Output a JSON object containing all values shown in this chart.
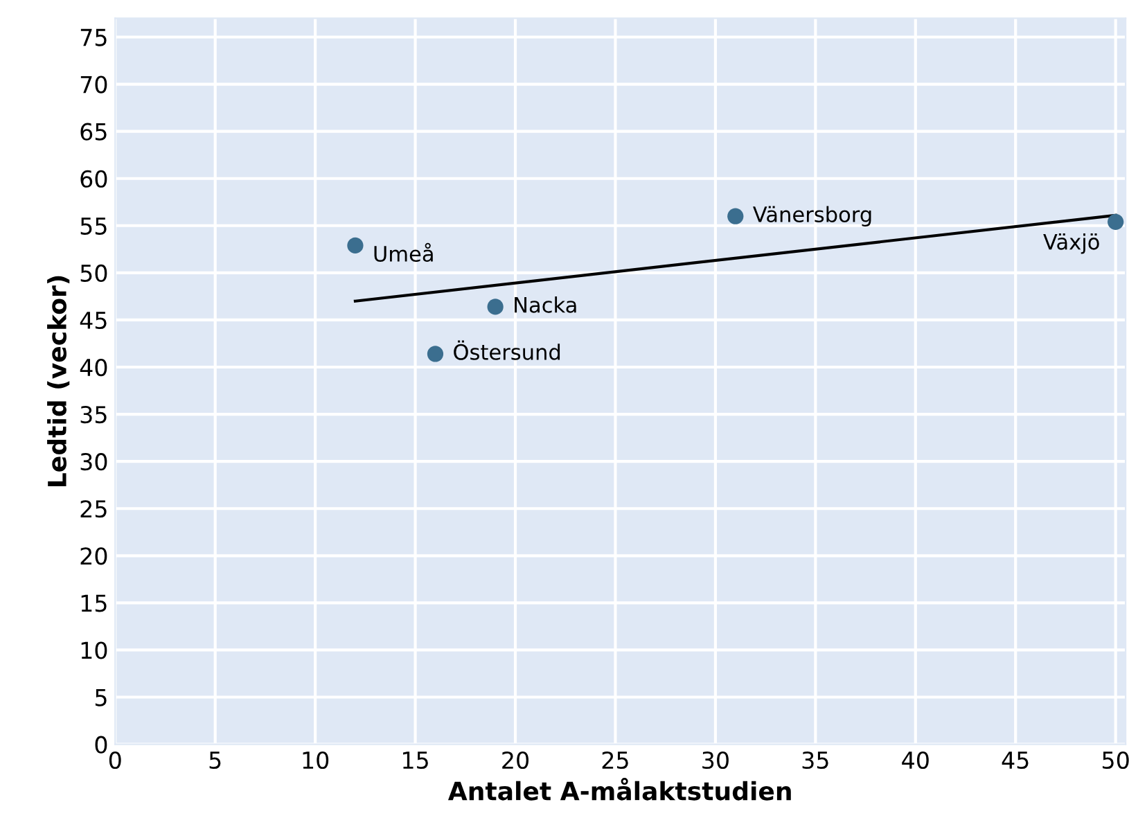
{
  "chart_data": {
    "type": "scatter",
    "xlabel": "Antalet A-målaktstudien",
    "ylabel": "Ledtid (veckor)",
    "xlim": [
      0,
      50.5
    ],
    "ylim": [
      0,
      77
    ],
    "xticks": [
      0,
      5,
      10,
      15,
      20,
      25,
      30,
      35,
      40,
      45,
      50
    ],
    "yticks": [
      0,
      5,
      10,
      15,
      20,
      25,
      30,
      35,
      40,
      45,
      50,
      55,
      60,
      65,
      70,
      75
    ],
    "grid": true,
    "series": [
      {
        "color": "#3b6e8f",
        "marker": "circle",
        "x": [
          12,
          16,
          19,
          31,
          50
        ],
        "values": [
          52.9,
          41.4,
          46.4,
          56,
          55.4
        ]
      },
      {
        "type": "line",
        "marker": "none",
        "color": "#000000",
        "x": [
          12,
          50
        ],
        "values": [
          47.0,
          56.1
        ]
      }
    ],
    "annotations": [
      {
        "text": "Umeå",
        "x": 12,
        "y": 52.9
      },
      {
        "text": "Östersund",
        "x": 16,
        "y": 41.4
      },
      {
        "text": "Nacka",
        "x": 19,
        "y": 46.4
      },
      {
        "text": "Vänersborg",
        "x": 31,
        "y": 56
      },
      {
        "text": "Växjö",
        "x": 50,
        "y": 55.4
      }
    ]
  }
}
